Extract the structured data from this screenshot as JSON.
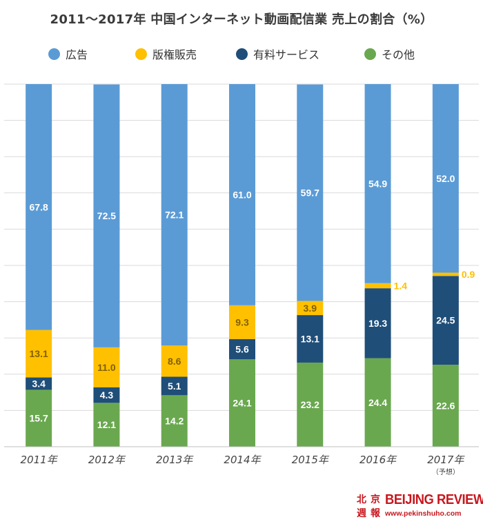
{
  "chart_data": {
    "type": "bar",
    "stacked": true,
    "title": "2011～2017年 中国インターネット動画配信業 売上の割合（%）",
    "categories": [
      "2011年",
      "2012年",
      "2013年",
      "2014年",
      "2015年",
      "2016年",
      "2017年"
    ],
    "category_notes": [
      "",
      "",
      "",
      "",
      "",
      "",
      "（予想）"
    ],
    "series": [
      {
        "name": "その他",
        "color": "#6aa84f",
        "values": [
          15.7,
          12.1,
          14.2,
          24.1,
          23.2,
          24.4,
          22.6
        ]
      },
      {
        "name": "有料サービス",
        "color": "#1f4e79",
        "values": [
          3.4,
          4.3,
          5.1,
          5.6,
          13.1,
          19.3,
          24.5
        ]
      },
      {
        "name": "版権販売",
        "color": "#ffc000",
        "values": [
          13.1,
          11.0,
          8.6,
          9.3,
          3.9,
          1.4,
          0.9
        ]
      },
      {
        "name": "広告",
        "color": "#5b9bd5",
        "values": [
          67.8,
          72.5,
          72.1,
          61.0,
          59.7,
          54.9,
          52.0
        ]
      }
    ],
    "legend_order": [
      "広告",
      "版権販売",
      "有料サービス",
      "その他"
    ],
    "ylim": [
      0,
      100
    ],
    "grid": true,
    "legend_position": "top",
    "label_colors": {
      "その他": "#ffffff",
      "有料サービス": "#ffffff",
      "版権販売": "#7f6000",
      "広告": "#ffffff",
      "版権販売_outside": "#ffc000"
    }
  },
  "logo": {
    "seal_chars": [
      "北",
      "京",
      "週",
      "報"
    ],
    "brand": "BEIJING REVIEW",
    "site": "www.pekinshuho.com"
  }
}
